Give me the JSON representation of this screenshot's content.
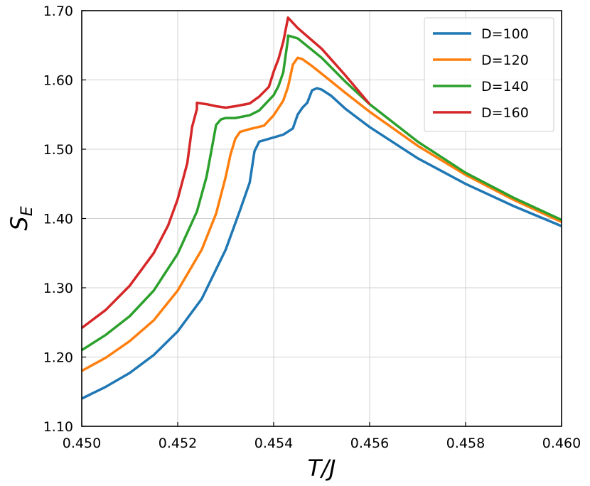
{
  "chart_data": {
    "type": "line",
    "title": "",
    "xlabel": "T/J",
    "ylabel_main": "S",
    "ylabel_sub": "E",
    "xlim": [
      0.45,
      0.46
    ],
    "ylim": [
      1.1,
      1.7
    ],
    "xticks": [
      0.45,
      0.452,
      0.454,
      0.456,
      0.458,
      0.46
    ],
    "xtick_labels": [
      "0.450",
      "0.452",
      "0.454",
      "0.456",
      "0.458",
      "0.460"
    ],
    "yticks": [
      1.1,
      1.2,
      1.3,
      1.4,
      1.5,
      1.6,
      1.7
    ],
    "ytick_labels": [
      "1.10",
      "1.20",
      "1.30",
      "1.40",
      "1.50",
      "1.60",
      "1.70"
    ],
    "grid": true,
    "legend_position": "top-right",
    "series": [
      {
        "name": "D=100",
        "color": "#1f77b4",
        "points": [
          [
            0.45,
            1.14
          ],
          [
            0.4505,
            1.157
          ],
          [
            0.451,
            1.177
          ],
          [
            0.4515,
            1.203
          ],
          [
            0.452,
            1.237
          ],
          [
            0.4525,
            1.284
          ],
          [
            0.453,
            1.355
          ],
          [
            0.4533,
            1.412
          ],
          [
            0.4535,
            1.452
          ],
          [
            0.4536,
            1.497
          ],
          [
            0.4537,
            1.511
          ],
          [
            0.454,
            1.517
          ],
          [
            0.4542,
            1.521
          ],
          [
            0.4544,
            1.53
          ],
          [
            0.4545,
            1.55
          ],
          [
            0.4546,
            1.56
          ],
          [
            0.4547,
            1.567
          ],
          [
            0.4548,
            1.585
          ],
          [
            0.4549,
            1.588
          ],
          [
            0.455,
            1.586
          ],
          [
            0.4552,
            1.577
          ],
          [
            0.4555,
            1.558
          ],
          [
            0.456,
            1.532
          ],
          [
            0.457,
            1.487
          ],
          [
            0.458,
            1.45
          ],
          [
            0.459,
            1.418
          ],
          [
            0.46,
            1.389
          ]
        ]
      },
      {
        "name": "D=120",
        "color": "#ff7f0e",
        "points": [
          [
            0.45,
            1.18
          ],
          [
            0.4505,
            1.199
          ],
          [
            0.451,
            1.223
          ],
          [
            0.4515,
            1.253
          ],
          [
            0.452,
            1.296
          ],
          [
            0.4525,
            1.355
          ],
          [
            0.4528,
            1.407
          ],
          [
            0.453,
            1.46
          ],
          [
            0.4531,
            1.492
          ],
          [
            0.4532,
            1.515
          ],
          [
            0.4533,
            1.525
          ],
          [
            0.4535,
            1.529
          ],
          [
            0.4538,
            1.534
          ],
          [
            0.454,
            1.549
          ],
          [
            0.4542,
            1.57
          ],
          [
            0.4543,
            1.59
          ],
          [
            0.4544,
            1.622
          ],
          [
            0.4545,
            1.632
          ],
          [
            0.4546,
            1.63
          ],
          [
            0.4548,
            1.62
          ],
          [
            0.455,
            1.609
          ],
          [
            0.4555,
            1.581
          ],
          [
            0.456,
            1.554
          ],
          [
            0.457,
            1.505
          ],
          [
            0.458,
            1.463
          ],
          [
            0.459,
            1.427
          ],
          [
            0.46,
            1.395
          ]
        ]
      },
      {
        "name": "D=140",
        "color": "#2ca02c",
        "points": [
          [
            0.45,
            1.21
          ],
          [
            0.4505,
            1.232
          ],
          [
            0.451,
            1.259
          ],
          [
            0.4515,
            1.296
          ],
          [
            0.452,
            1.349
          ],
          [
            0.4524,
            1.41
          ],
          [
            0.4526,
            1.46
          ],
          [
            0.4527,
            1.497
          ],
          [
            0.4528,
            1.535
          ],
          [
            0.4529,
            1.543
          ],
          [
            0.453,
            1.545
          ],
          [
            0.4532,
            1.545
          ],
          [
            0.4535,
            1.549
          ],
          [
            0.4537,
            1.556
          ],
          [
            0.454,
            1.578
          ],
          [
            0.4541,
            1.591
          ],
          [
            0.4542,
            1.611
          ],
          [
            0.4543,
            1.66
          ],
          [
            0.4543,
            1.664
          ],
          [
            0.4545,
            1.66
          ],
          [
            0.455,
            1.632
          ],
          [
            0.4555,
            1.597
          ],
          [
            0.456,
            1.565
          ],
          [
            0.457,
            1.511
          ],
          [
            0.458,
            1.466
          ],
          [
            0.459,
            1.43
          ],
          [
            0.46,
            1.398
          ]
        ]
      },
      {
        "name": "D=160",
        "color": "#d62728",
        "points": [
          [
            0.45,
            1.242
          ],
          [
            0.4505,
            1.268
          ],
          [
            0.451,
            1.303
          ],
          [
            0.4515,
            1.35
          ],
          [
            0.4518,
            1.39
          ],
          [
            0.452,
            1.428
          ],
          [
            0.4522,
            1.48
          ],
          [
            0.4523,
            1.532
          ],
          [
            0.4524,
            1.558
          ],
          [
            0.4524,
            1.567
          ],
          [
            0.4526,
            1.565
          ],
          [
            0.4528,
            1.562
          ],
          [
            0.453,
            1.56
          ],
          [
            0.4532,
            1.562
          ],
          [
            0.4535,
            1.566
          ],
          [
            0.4537,
            1.576
          ],
          [
            0.4539,
            1.59
          ],
          [
            0.454,
            1.612
          ],
          [
            0.4541,
            1.63
          ],
          [
            0.4542,
            1.655
          ],
          [
            0.4543,
            1.69
          ],
          [
            0.4545,
            1.675
          ],
          [
            0.455,
            1.645
          ],
          [
            0.4555,
            1.606
          ],
          [
            0.456,
            1.565
          ]
        ]
      }
    ]
  }
}
